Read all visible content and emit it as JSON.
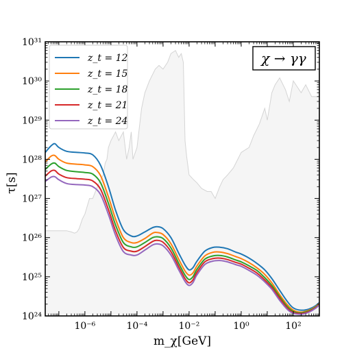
{
  "chart_data": {
    "type": "line",
    "xlabel": "m_χ[GeV]",
    "ylabel": "τ[s]",
    "x_scale": "log",
    "y_scale": "log",
    "xlim": [
      3e-08,
      1000
    ],
    "ylim": [
      1e+24,
      1e+31
    ],
    "x_ticks": [
      {
        "value": 1e-06,
        "label": "10⁻⁶"
      },
      {
        "value": 0.0001,
        "label": "10⁻⁴"
      },
      {
        "value": 0.01,
        "label": "10⁻²"
      },
      {
        "value": 1,
        "label": "10⁰"
      },
      {
        "value": 100,
        "label": "10²"
      }
    ],
    "y_ticks": [
      {
        "value": 1e+24,
        "label": "10²⁴"
      },
      {
        "value": 1e+25,
        "label": "10²⁵"
      },
      {
        "value": 1e+26,
        "label": "10²⁶"
      },
      {
        "value": 1e+27,
        "label": "10²⁷"
      },
      {
        "value": 1e+28,
        "label": "10²⁸"
      },
      {
        "value": 1e+29,
        "label": "10²⁹"
      },
      {
        "value": 1e+30,
        "label": "10³⁰"
      },
      {
        "value": 1e+31,
        "label": "10³¹"
      }
    ],
    "annotation": "χ → γγ",
    "legend_position": "top-left",
    "constraint_region": {
      "color": "#f5f5f5",
      "edge_color": "#d4d4d4",
      "x": [
        3e-08,
        1e-07,
        2e-07,
        3e-07,
        4e-07,
        5e-07,
        6e-07,
        8e-07,
        1e-06,
        1.5e-06,
        2e-06,
        3e-06,
        4e-06,
        5e-06,
        6e-06,
        7e-06,
        8e-06,
        1e-05,
        1.5e-05,
        2e-05,
        3e-05,
        4e-05,
        5e-05,
        6e-05,
        7e-05,
        0.0001,
        0.00015,
        0.0002,
        0.0003,
        0.0005,
        0.0007,
        0.001,
        0.0015,
        0.002,
        0.003,
        0.004,
        0.005,
        0.006,
        0.007,
        0.008,
        0.01,
        0.015,
        0.02,
        0.03,
        0.05,
        0.07,
        0.1,
        0.15,
        0.2,
        0.3,
        0.5,
        1,
        2,
        3,
        5,
        8,
        10,
        15,
        20,
        30,
        50,
        70,
        100,
        200,
        300,
        500,
        1000
      ],
      "y": [
        1.5e+26,
        1.5e+26,
        1.5e+26,
        1.4e+26,
        1.3e+26,
        1.4e+26,
        1.7e+26,
        3e+26,
        4e+26,
        1e+27,
        1e+27,
        2e+27,
        3e+27,
        4e+27,
        8e+27,
        1e+28,
        2e+28,
        3e+28,
        5e+28,
        3e+28,
        5e+28,
        1e+28,
        2e+28,
        5e+28,
        1e+28,
        2e+28,
        2e+29,
        5e+29,
        1e+30,
        2e+30,
        2.5e+30,
        2e+30,
        3e+30,
        5e+30,
        6e+30,
        4e+30,
        5e+30,
        3e+30,
        3e+28,
        1.2e+28,
        4e+27,
        3e+27,
        2.5e+27,
        1.8e+27,
        1.5e+27,
        1.5e+27,
        1e+27,
        2e+27,
        3e+27,
        4e+27,
        6e+27,
        1.5e+28,
        2e+28,
        4e+28,
        8e+28,
        2e+29,
        1e+29,
        5e+29,
        8e+29,
        1.2e+30,
        6e+29,
        3e+29,
        1e+30,
        5e+29,
        8e+29,
        4e+29,
        4e+29
      ]
    },
    "series": [
      {
        "name": "z_t = 12",
        "color": "#1f77b4",
        "x": [
          3e-08,
          5e-08,
          7e-08,
          1e-07,
          2e-07,
          5e-07,
          1e-06,
          2e-06,
          4e-06,
          8e-06,
          1.5e-05,
          3e-05,
          6e-05,
          0.0001,
          0.0002,
          0.0004,
          0.0006,
          0.001,
          0.002,
          0.004,
          0.007,
          0.01,
          0.014,
          0.02,
          0.04,
          0.08,
          0.15,
          0.3,
          0.6,
          1,
          2,
          4,
          8,
          15,
          30,
          60,
          100,
          200,
          400,
          700,
          1000
        ],
        "y": [
          1.5e+28,
          2.2e+28,
          2.5e+28,
          2e+28,
          1.6e+28,
          1.5e+28,
          1.45e+28,
          1.3e+28,
          7e+27,
          2e+27,
          5e+26,
          1.6e+26,
          1.1e+26,
          1.1e+26,
          1.4e+26,
          1.8e+26,
          1.9e+26,
          1.7e+26,
          1e+26,
          4e+25,
          2e+25,
          1.5e+25,
          1.7e+25,
          2.5e+25,
          4.5e+25,
          5.6e+25,
          5.7e+25,
          5.2e+25,
          4.3e+25,
          3.8e+25,
          3e+25,
          2.2e+25,
          1.5e+25,
          9e+24,
          4.5e+24,
          2.3e+24,
          1.6e+24,
          1.4e+24,
          1.5e+24,
          1.8e+24,
          2.2e+24
        ]
      },
      {
        "name": "z_t = 15",
        "color": "#ff7f0e",
        "x": [
          3e-08,
          5e-08,
          7e-08,
          1e-07,
          2e-07,
          5e-07,
          1e-06,
          2e-06,
          4e-06,
          8e-06,
          1.5e-05,
          3e-05,
          6e-05,
          0.0001,
          0.0002,
          0.0004,
          0.0006,
          0.001,
          0.002,
          0.004,
          0.007,
          0.01,
          0.014,
          0.02,
          0.04,
          0.08,
          0.15,
          0.3,
          0.6,
          1,
          2,
          4,
          8,
          15,
          30,
          60,
          100,
          200,
          400,
          700,
          1000
        ],
        "y": [
          8.5e+27,
          1.2e+28,
          1.25e+28,
          1e+28,
          8e+27,
          7.5e+27,
          7.2e+27,
          6.5e+27,
          3.8e+27,
          1.1e+27,
          3e+26,
          1e+26,
          7.5e+25,
          7.5e+25,
          9.5e+25,
          1.3e+26,
          1.35e+26,
          1.2e+26,
          7e+25,
          2.8e+25,
          1.4e+25,
          1.1e+25,
          1.25e+25,
          1.9e+25,
          3.4e+25,
          4.2e+25,
          4.3e+25,
          3.9e+25,
          3.3e+25,
          2.9e+25,
          2.3e+25,
          1.7e+25,
          1.15e+25,
          7e+24,
          3.5e+24,
          1.9e+24,
          1.4e+24,
          1.25e+24,
          1.4e+24,
          1.7e+24,
          2.1e+24
        ]
      },
      {
        "name": "z_t = 18",
        "color": "#2ca02c",
        "x": [
          3e-08,
          5e-08,
          7e-08,
          1e-07,
          2e-07,
          5e-07,
          1e-06,
          2e-06,
          4e-06,
          8e-06,
          1.5e-05,
          3e-05,
          6e-05,
          0.0001,
          0.0002,
          0.0004,
          0.0006,
          0.001,
          0.002,
          0.004,
          0.007,
          0.01,
          0.014,
          0.02,
          0.04,
          0.08,
          0.15,
          0.3,
          0.6,
          1,
          2,
          4,
          8,
          15,
          30,
          60,
          100,
          200,
          400,
          700,
          1000
        ],
        "y": [
          5.5e+27,
          7.5e+27,
          8e+27,
          6.5e+27,
          5.2e+27,
          4.8e+27,
          4.6e+27,
          4.2e+27,
          2.5e+27,
          7.5e+26,
          2.1e+26,
          7.5e+25,
          5.8e+25,
          5.8e+25,
          7.5e+25,
          1e+26,
          1.05e+26,
          9.5e+25,
          5.5e+25,
          2.2e+25,
          1.1e+25,
          8.5e+24,
          1e+25,
          1.55e+25,
          2.8e+25,
          3.4e+25,
          3.5e+25,
          3.2e+25,
          2.7e+25,
          2.4e+25,
          1.9e+25,
          1.45e+25,
          9.5e+24,
          6e+24,
          3.1e+24,
          1.7e+24,
          1.3e+24,
          1.2e+24,
          1.35e+24,
          1.65e+24,
          2e+24
        ]
      },
      {
        "name": "z_t = 21",
        "color": "#d62728",
        "x": [
          3e-08,
          5e-08,
          7e-08,
          1e-07,
          2e-07,
          5e-07,
          1e-06,
          2e-06,
          4e-06,
          8e-06,
          1.5e-05,
          3e-05,
          6e-05,
          0.0001,
          0.0002,
          0.0004,
          0.0006,
          0.001,
          0.002,
          0.004,
          0.007,
          0.01,
          0.014,
          0.02,
          0.04,
          0.08,
          0.15,
          0.3,
          0.6,
          1,
          2,
          4,
          8,
          15,
          30,
          60,
          100,
          200,
          400,
          700,
          1000
        ],
        "y": [
          3.7e+27,
          5e+27,
          5.2e+27,
          4.2e+27,
          3.4e+27,
          3.2e+27,
          3.1e+27,
          2.8e+27,
          1.7e+27,
          5.2e+26,
          1.5e+26,
          5.6e+25,
          4.5e+25,
          4.5e+25,
          5.9e+25,
          8e+25,
          8.5e+25,
          7.6e+25,
          4.4e+25,
          1.8e+25,
          9e+24,
          7e+24,
          8.3e+24,
          1.3e+25,
          2.4e+25,
          2.9e+25,
          3e+25,
          2.75e+25,
          2.35e+25,
          2.1e+25,
          1.65e+25,
          1.25e+25,
          8.3e+24,
          5.3e+24,
          2.8e+24,
          1.55e+24,
          1.22e+24,
          1.15e+24,
          1.3e+24,
          1.6e+24,
          1.95e+24
        ]
      },
      {
        "name": "z_t = 24",
        "color": "#9467bd",
        "x": [
          3e-08,
          5e-08,
          7e-08,
          1e-07,
          2e-07,
          5e-07,
          1e-06,
          2e-06,
          4e-06,
          8e-06,
          1.5e-05,
          3e-05,
          6e-05,
          0.0001,
          0.0002,
          0.0004,
          0.0006,
          0.001,
          0.002,
          0.004,
          0.007,
          0.01,
          0.014,
          0.02,
          0.04,
          0.08,
          0.15,
          0.3,
          0.6,
          1,
          2,
          4,
          8,
          15,
          30,
          60,
          100,
          200,
          400,
          700,
          1000
        ],
        "y": [
          2.7e+27,
          3.5e+27,
          3.6e+27,
          3e+27,
          2.4e+27,
          2.25e+27,
          2.2e+27,
          2e+27,
          1.25e+27,
          3.9e+26,
          1.15e+26,
          4.4e+25,
          3.6e+25,
          3.6e+25,
          4.8e+25,
          6.5e+25,
          6.9e+25,
          6.2e+25,
          3.6e+25,
          1.5e+25,
          7.6e+24,
          6e+24,
          7.1e+24,
          1.12e+25,
          2.05e+25,
          2.5e+25,
          2.6e+25,
          2.4e+25,
          2.05e+25,
          1.85e+25,
          1.45e+25,
          1.1e+25,
          7.4e+24,
          4.8e+24,
          2.5e+24,
          1.45e+24,
          1.17e+24,
          1.1e+24,
          1.25e+24,
          1.55e+24,
          1.9e+24
        ]
      }
    ]
  }
}
